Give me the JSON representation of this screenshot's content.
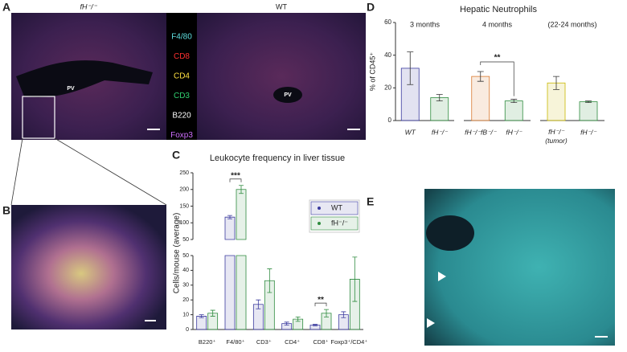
{
  "figure": {
    "labels": [
      "A",
      "B",
      "C",
      "D",
      "E"
    ],
    "A": {
      "left_title": "fH⁻/⁻",
      "right_title": "WT",
      "pv_left": "PV",
      "pv_right": "PV",
      "markers": [
        "F4/80",
        "CD8",
        "CD4",
        "CD3",
        "B220",
        "Foxp3"
      ]
    },
    "D_title": "Hepatic Neutrophils"
  },
  "chart_data": [
    {
      "type": "bar",
      "title": "Leukocyte frequency in liver tissue",
      "y_label": "Cells/mouse (average)",
      "categories": [
        "B220⁺",
        "F4/80⁺",
        "CD3⁺",
        "CD4⁺",
        "CD8⁺",
        "Foxp3⁺/CD4⁺"
      ],
      "series": [
        {
          "name": "WT",
          "color": "#3a3a9e",
          "values": [
            9,
            117,
            17,
            4,
            3,
            10
          ],
          "errors": [
            1,
            5,
            3,
            1,
            0.5,
            2
          ]
        },
        {
          "name": "fH⁻/⁻",
          "color": "#2e8b3e",
          "values": [
            11,
            200,
            33,
            7,
            11,
            34
          ],
          "errors": [
            2,
            12,
            8,
            1.5,
            2.5,
            15
          ]
        }
      ],
      "segments": [
        {
          "ylim": [
            0,
            50
          ],
          "yticks": [
            0,
            10,
            20,
            30,
            40,
            50
          ]
        },
        {
          "ylim": [
            50,
            250
          ],
          "yticks": [
            50,
            100,
            150,
            200,
            250
          ]
        }
      ],
      "annotations": [
        "***",
        "**"
      ]
    },
    {
      "type": "bar",
      "title": "3 months",
      "y_label": "% of CD45⁺",
      "categories": [
        "WT",
        "fH⁻/⁻"
      ],
      "values": [
        32,
        14
      ],
      "errors": [
        10,
        2
      ],
      "colors": [
        "#3a3a9e",
        "#2e8b3e"
      ],
      "ylim": [
        0,
        60
      ],
      "yticks": [
        0,
        20,
        40,
        60
      ]
    },
    {
      "type": "bar",
      "title": "4 months",
      "categories": [
        "fH⁻/⁻fB⁻/⁻",
        "fH⁻/⁻"
      ],
      "values": [
        27,
        12
      ],
      "errors": [
        3,
        1
      ],
      "colors": [
        "#d9782d",
        "#2e8b3e"
      ],
      "ylim": [
        0,
        60
      ],
      "annotations": [
        "**"
      ]
    },
    {
      "type": "bar",
      "title": "(22-24 months)",
      "categories": [
        "fH⁻/⁻ (tumor)",
        "fH⁻/⁻"
      ],
      "values": [
        23,
        11.5
      ],
      "errors": [
        4,
        0.5
      ],
      "colors": [
        "#c9b800",
        "#2e8b3e"
      ],
      "ylim": [
        0,
        60
      ]
    }
  ]
}
